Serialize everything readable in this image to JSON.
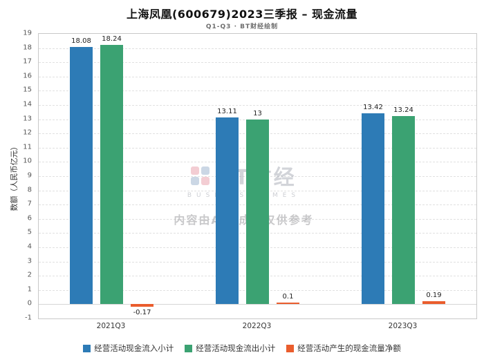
{
  "title": "上海凤凰(600679)2023三季报 – 现金流量",
  "subtitle": "Q1-Q3 · BT财经绘制",
  "watermark": {
    "logo_text": "BT财经",
    "logo_subtext": "BUSINESSTIMES",
    "disclaimer": "内容由AI生成，仅供参考"
  },
  "chart_data": {
    "type": "bar",
    "title": "上海凤凰(600679)2023三季报 – 现金流量",
    "subtitle": "Q1-Q3 · BT财经绘制",
    "categories": [
      "2021Q3",
      "2022Q3",
      "2023Q3"
    ],
    "series": [
      {
        "name": "经营活动现金流入小计",
        "color": "#2d7bb6",
        "values": [
          18.08,
          13.11,
          13.42
        ],
        "labels": [
          "18.08",
          "13.11",
          "13.42"
        ]
      },
      {
        "name": "经营活动现金流出小计",
        "color": "#3ba272",
        "values": [
          18.24,
          13,
          13.24
        ],
        "labels": [
          "18.24",
          "13",
          "13.24"
        ]
      },
      {
        "name": "经营活动产生的现金流量净额",
        "color": "#ea5d2d",
        "values": [
          -0.17,
          0.1,
          0.19
        ],
        "labels": [
          "-0.17",
          "0.1",
          "0.19"
        ]
      }
    ],
    "xlabel": "",
    "ylabel": "数额（人民币亿元）",
    "ylim": [
      -1,
      19
    ],
    "ytick_step": 1,
    "grid": true,
    "legend_position": "bottom"
  }
}
